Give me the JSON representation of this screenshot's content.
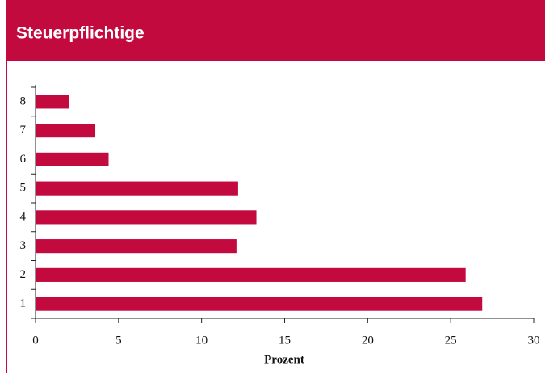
{
  "chart_data": {
    "type": "barh",
    "title": "Steuerpflichtige",
    "x_label": "Prozent",
    "categories": [
      "1",
      "2",
      "3",
      "4",
      "5",
      "6",
      "7",
      "8"
    ],
    "values": [
      26.9,
      25.9,
      12.1,
      13.3,
      12.2,
      4.4,
      3.6,
      2.0
    ],
    "color": "#c30a3f",
    "xlim": [
      0,
      30
    ],
    "xticks": [
      0,
      5,
      10,
      15,
      20,
      25,
      30
    ],
    "grid": false
  }
}
